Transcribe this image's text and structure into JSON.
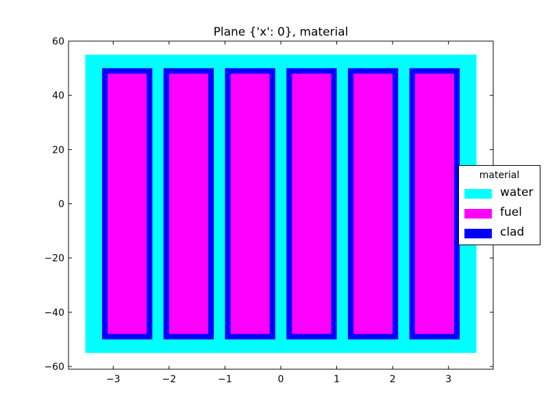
{
  "chart_data": {
    "type": "heatmap",
    "title": "Plane {'x': 0}, material",
    "xlabel": "",
    "ylabel": "",
    "xlim": [
      -3.8,
      3.8
    ],
    "ylim": [
      -61,
      60
    ],
    "xticks": [
      -3,
      -2,
      -1,
      0,
      1,
      2,
      3
    ],
    "xtick_labels": [
      "−3",
      "−2",
      "−1",
      "0",
      "1",
      "2",
      "3"
    ],
    "yticks": [
      60,
      40,
      20,
      0,
      -20,
      -40,
      -60
    ],
    "ytick_labels": [
      "60",
      "40",
      "20",
      "0",
      "−20",
      "−40",
      "−60"
    ],
    "grid": false,
    "legend": {
      "title": "material",
      "placement": "center-right",
      "entries": [
        {
          "label": "water",
          "color": "#00ffff"
        },
        {
          "label": "fuel",
          "color": "#ff00ff"
        },
        {
          "label": "clad",
          "color": "#0000ff"
        }
      ]
    },
    "regions": [
      {
        "material": "water",
        "x": [
          -3.5,
          3.5
        ],
        "y": [
          -55,
          55
        ]
      },
      {
        "material": "clad",
        "x": [
          -3.2,
          -2.3
        ],
        "y": [
          -50,
          50
        ]
      },
      {
        "material": "fuel",
        "x": [
          -3.1,
          -2.4
        ],
        "y": [
          -48,
          48
        ]
      },
      {
        "material": "clad",
        "x": [
          -2.1,
          -1.2
        ],
        "y": [
          -50,
          50
        ]
      },
      {
        "material": "fuel",
        "x": [
          -2.0,
          -1.3
        ],
        "y": [
          -48,
          48
        ]
      },
      {
        "material": "clad",
        "x": [
          -1.0,
          -0.1
        ],
        "y": [
          -50,
          50
        ]
      },
      {
        "material": "fuel",
        "x": [
          -0.9,
          -0.2
        ],
        "y": [
          -48,
          48
        ]
      },
      {
        "material": "clad",
        "x": [
          0.1,
          1.0
        ],
        "y": [
          -50,
          50
        ]
      },
      {
        "material": "fuel",
        "x": [
          0.2,
          0.9
        ],
        "y": [
          -48,
          48
        ]
      },
      {
        "material": "clad",
        "x": [
          1.2,
          2.1
        ],
        "y": [
          -50,
          50
        ]
      },
      {
        "material": "fuel",
        "x": [
          1.3,
          2.0
        ],
        "y": [
          -48,
          48
        ]
      },
      {
        "material": "clad",
        "x": [
          2.3,
          3.2
        ],
        "y": [
          -50,
          50
        ]
      },
      {
        "material": "fuel",
        "x": [
          2.4,
          3.1
        ],
        "y": [
          -48,
          48
        ]
      }
    ],
    "colors": {
      "water": "#00ffff",
      "fuel": "#ff00ff",
      "clad": "#0000ff"
    }
  }
}
